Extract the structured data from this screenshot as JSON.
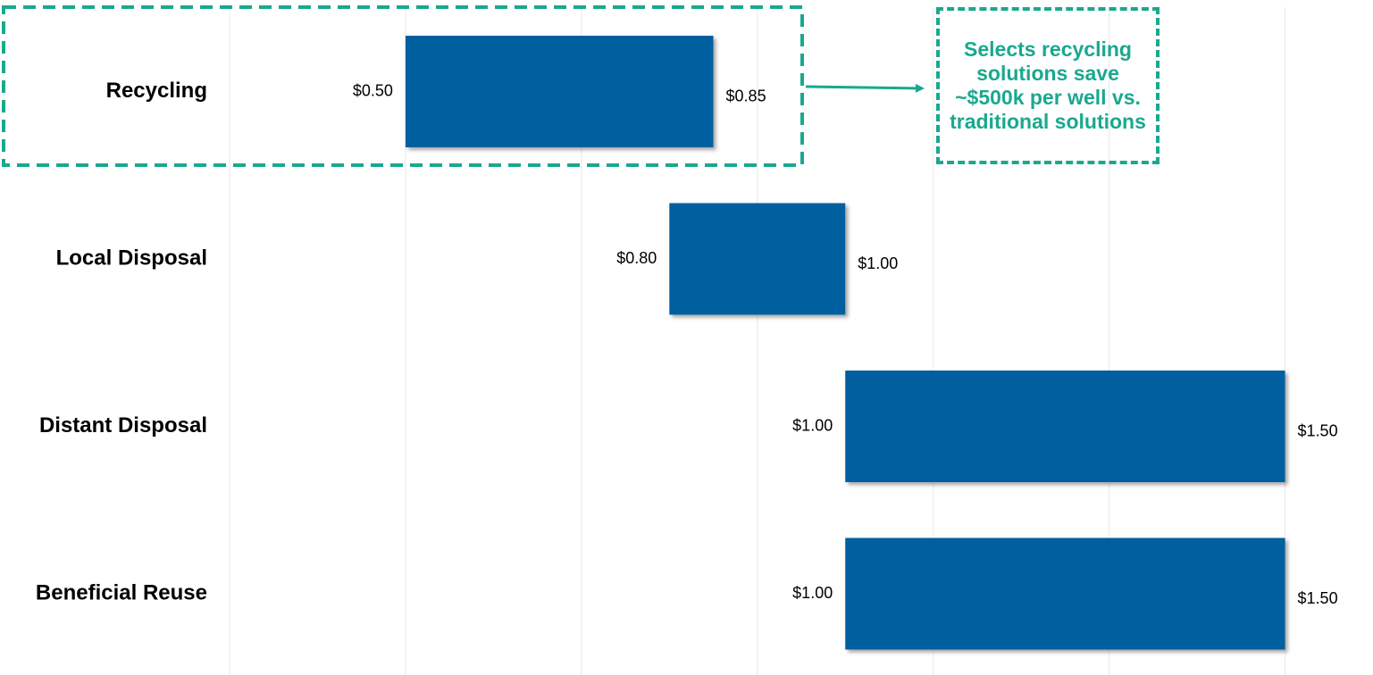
{
  "chart_data": {
    "type": "bar",
    "subtype": "floating-range-horizontal",
    "categories": [
      "Recycling",
      "Local Disposal",
      "Distant Disposal",
      "Beneficial Reuse"
    ],
    "series": [
      {
        "low": [
          0.5,
          0.8,
          1.0,
          1.0
        ],
        "high": [
          0.85,
          1.0,
          1.5,
          1.5
        ]
      }
    ],
    "low_labels": [
      "$0.50",
      "$0.80",
      "$1.00",
      "$1.00"
    ],
    "high_labels": [
      "$0.85",
      "$1.00",
      "$1.50",
      "$1.50"
    ],
    "xlim": [
      0.3,
      1.6
    ],
    "gridlines_at": [
      0.3,
      0.5,
      0.7,
      0.9,
      1.1,
      1.3,
      1.5
    ],
    "grid": true,
    "highlighted_category": "Recycling",
    "title": "",
    "xlabel": "",
    "ylabel": ""
  },
  "callout": {
    "text": "Selects recycling solutions save ~$500k per well vs. traditional solutions"
  },
  "colors": {
    "bar": "#005e9e",
    "accent": "#1aa88f",
    "grid": "#ececec"
  }
}
